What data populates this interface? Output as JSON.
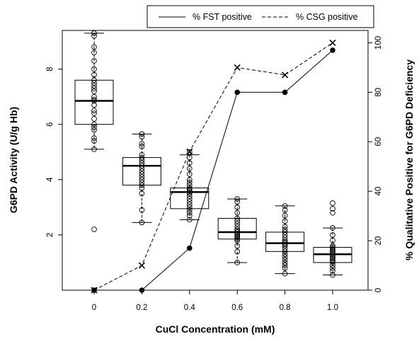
{
  "chart_data": {
    "type": "box-and-line",
    "xlabel": "CuCl Concentration (mM)",
    "ylabel_left": "G6PD Activity (U/g Hb)",
    "ylabel_right": "% Qualitative Positive for G6PD Deficiency",
    "categories": [
      "0",
      "0.2",
      "0.4",
      "0.6",
      "0.8",
      "1.0"
    ],
    "ylim_left": [
      0,
      9.4
    ],
    "yticks_left": [
      2,
      4,
      6,
      8
    ],
    "ylim_right": [
      0,
      105
    ],
    "yticks_right": [
      0,
      20,
      40,
      60,
      80,
      100
    ],
    "legend": {
      "placement": "top-right",
      "entries": [
        {
          "label": "% FST positive",
          "style": "solid"
        },
        {
          "label": "% CSG positive",
          "style": "dashed"
        }
      ]
    },
    "boxes": [
      {
        "category": "0",
        "whisker_low": 5.1,
        "q1": 6.0,
        "median": 6.85,
        "q3": 7.6,
        "whisker_high": 9.3,
        "points": [
          9.3,
          9.2,
          8.8,
          8.6,
          8.3,
          8.0,
          7.8,
          7.6,
          7.5,
          7.4,
          7.3,
          7.2,
          7.0,
          6.9,
          6.85,
          6.7,
          6.5,
          6.4,
          6.2,
          6.0,
          5.9,
          5.8,
          5.5,
          5.4,
          5.1,
          2.2
        ]
      },
      {
        "category": "0.2",
        "whisker_low": 2.45,
        "q1": 3.8,
        "median": 4.5,
        "q3": 4.8,
        "whisker_high": 5.65,
        "points": [
          5.65,
          5.55,
          5.3,
          5.2,
          4.9,
          4.8,
          4.7,
          4.6,
          4.5,
          4.4,
          4.3,
          4.2,
          4.1,
          4.0,
          3.9,
          3.8,
          3.7,
          3.5,
          2.9,
          2.45
        ]
      },
      {
        "category": "0.4",
        "whisker_low": 2.55,
        "q1": 2.95,
        "median": 3.55,
        "q3": 3.7,
        "whisker_high": 4.9,
        "points": [
          5.0,
          4.8,
          4.6,
          4.4,
          4.2,
          4.0,
          3.9,
          3.8,
          3.7,
          3.65,
          3.6,
          3.55,
          3.5,
          3.4,
          3.3,
          3.2,
          3.1,
          3.0,
          2.9,
          2.8,
          2.7,
          2.55
        ]
      },
      {
        "category": "0.6",
        "whisker_low": 1.0,
        "q1": 1.85,
        "median": 2.1,
        "q3": 2.6,
        "whisker_high": 3.3,
        "points": [
          3.3,
          3.2,
          3.0,
          2.8,
          2.6,
          2.5,
          2.4,
          2.3,
          2.2,
          2.15,
          2.1,
          2.05,
          2.0,
          1.95,
          1.9,
          1.85,
          1.8,
          1.6,
          1.4,
          1.0
        ]
      },
      {
        "category": "0.8",
        "whisker_low": 0.6,
        "q1": 1.4,
        "median": 1.7,
        "q3": 2.1,
        "whisker_high": 3.05,
        "points": [
          3.05,
          2.9,
          2.7,
          2.5,
          2.3,
          2.2,
          2.1,
          2.0,
          1.9,
          1.8,
          1.75,
          1.7,
          1.65,
          1.6,
          1.5,
          1.4,
          1.3,
          1.2,
          1.1,
          1.0,
          0.9,
          0.8,
          0.6
        ]
      },
      {
        "category": "1.0",
        "whisker_low": 0.55,
        "q1": 1.0,
        "median": 1.3,
        "q3": 1.55,
        "whisker_high": 2.25,
        "points": [
          3.15,
          2.95,
          2.8,
          2.25,
          2.0,
          1.8,
          1.6,
          1.55,
          1.5,
          1.45,
          1.4,
          1.35,
          1.3,
          1.25,
          1.2,
          1.15,
          1.1,
          1.05,
          1.0,
          0.9,
          0.8,
          0.7,
          0.55
        ]
      }
    ],
    "series": [
      {
        "name": "% FST positive",
        "style": "solid",
        "marker": "filled-circle",
        "values": [
          0,
          0,
          17,
          80,
          80,
          97
        ]
      },
      {
        "name": "% CSG positive",
        "style": "dashed",
        "marker": "cross",
        "values": [
          0,
          10,
          56,
          90,
          87,
          100
        ]
      }
    ]
  }
}
